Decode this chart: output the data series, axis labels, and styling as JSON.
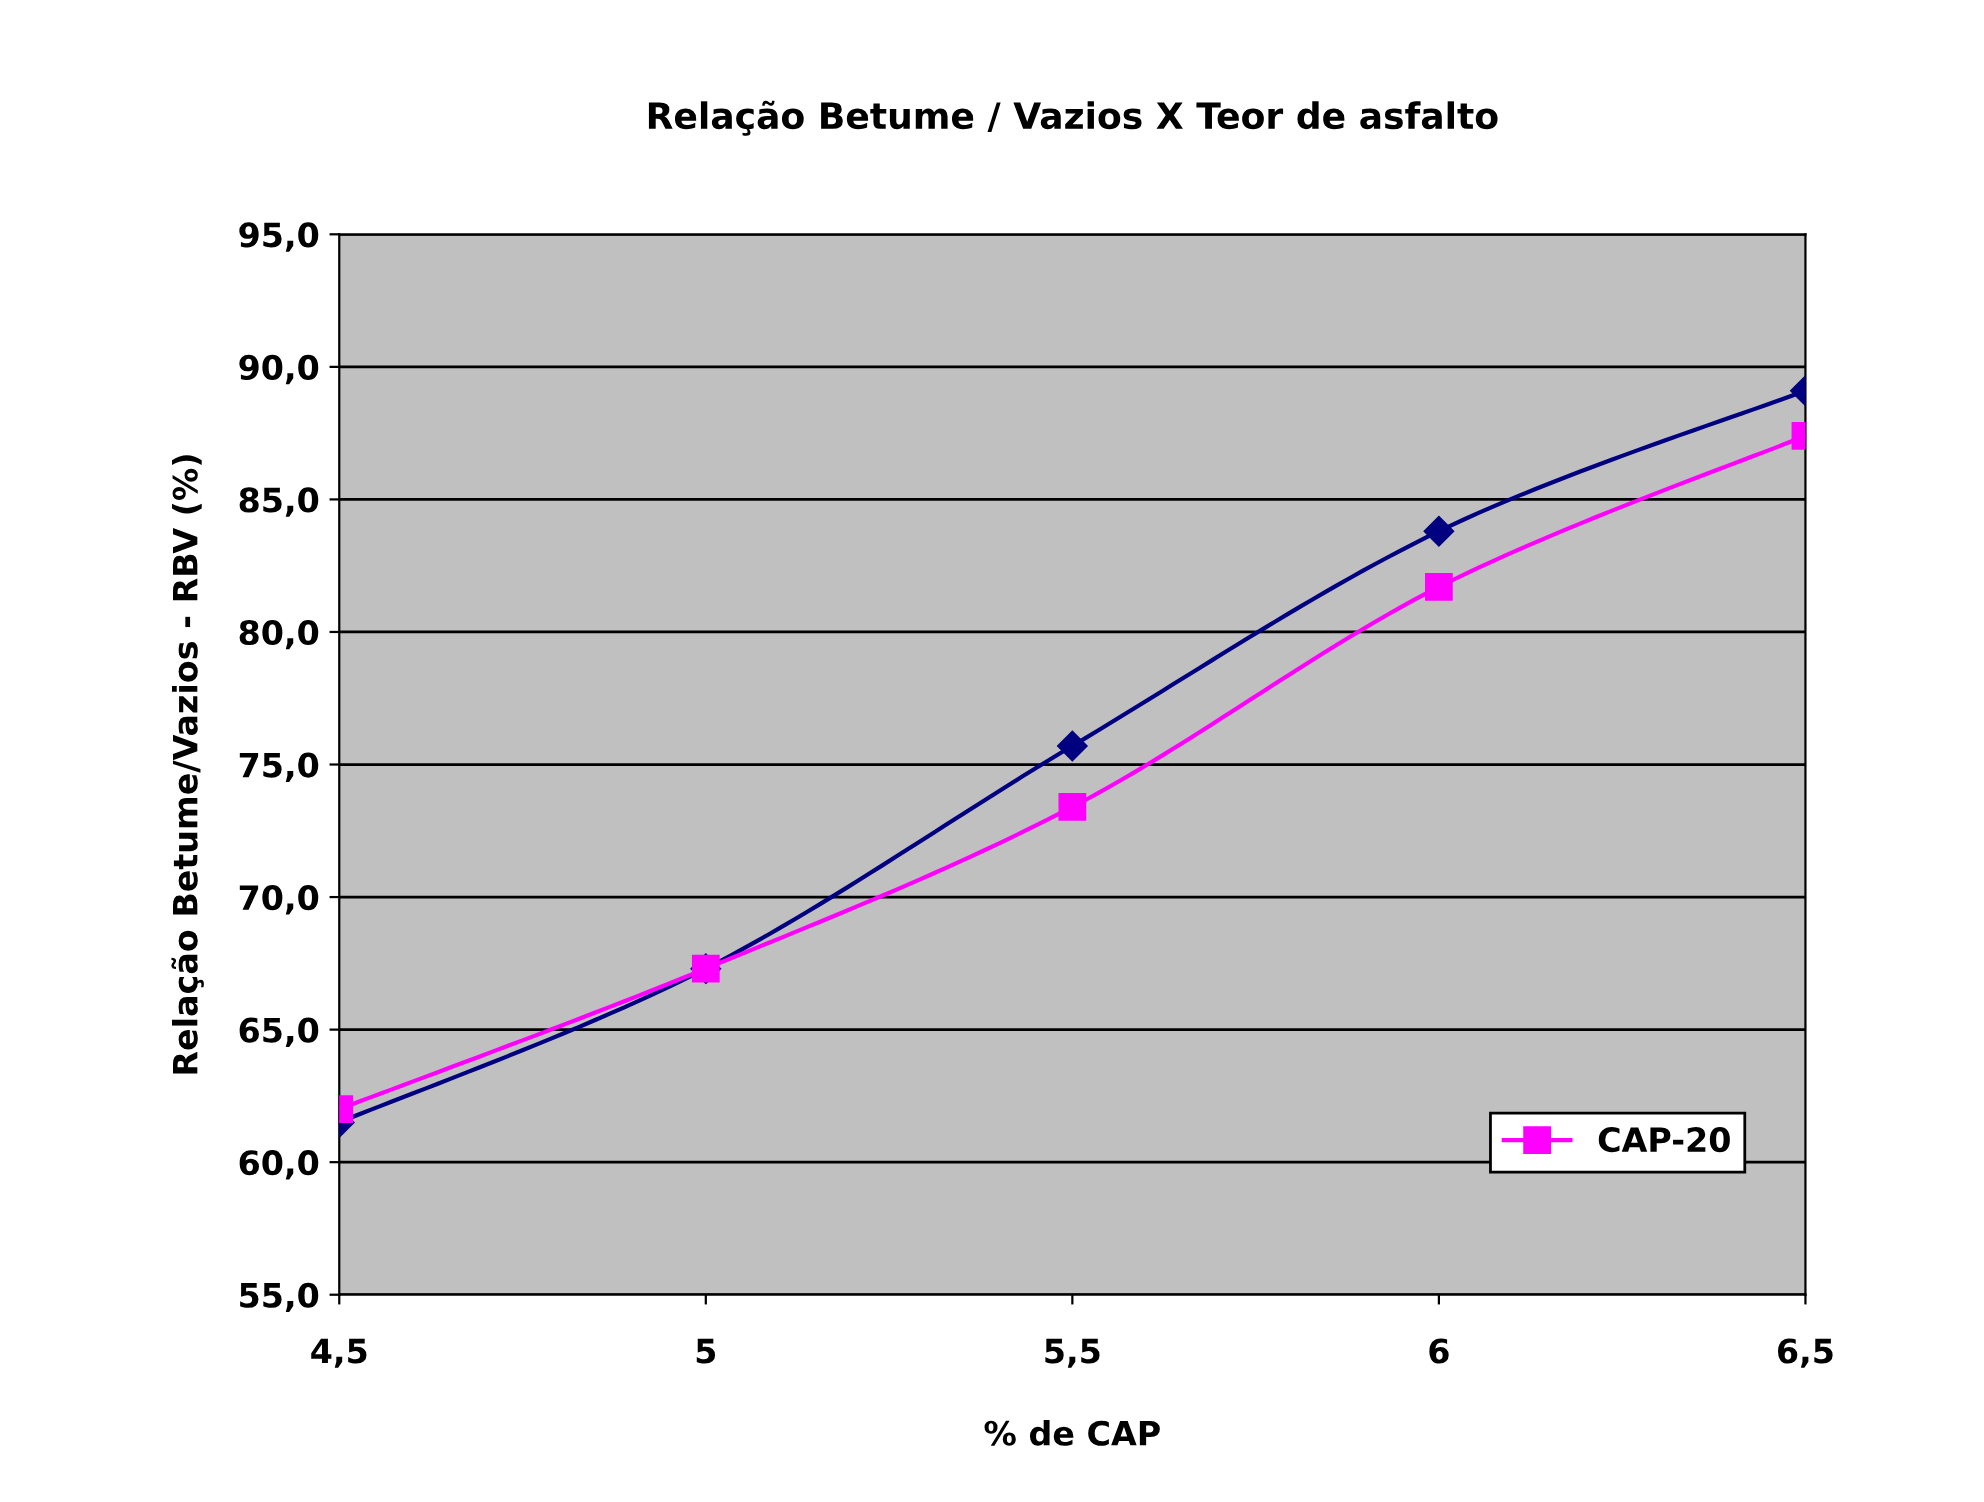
{
  "chart_data": {
    "type": "line",
    "title": "Relação Betume / Vazios X Teor de asfalto",
    "xlabel": "% de CAP",
    "ylabel": "Relação Betume/Vazios - RBV (%)",
    "x": [
      4.5,
      5,
      5.5,
      6,
      6.5
    ],
    "series": [
      {
        "color": "#000080",
        "marker": "diamond",
        "values": [
          61.5,
          67.3,
          75.7,
          83.8,
          89.1
        ]
      },
      {
        "name": "CAP-20",
        "color": "#ff00ff",
        "marker": "square",
        "values": [
          62.0,
          67.3,
          73.4,
          81.7,
          87.4
        ]
      }
    ],
    "xlim": [
      4.5,
      6.5
    ],
    "xticks": [
      {
        "value": 4.5,
        "label": "4,5"
      },
      {
        "value": 5,
        "label": "5"
      },
      {
        "value": 5.5,
        "label": "5,5"
      },
      {
        "value": 6,
        "label": "6"
      },
      {
        "value": 6.5,
        "label": "6,5"
      }
    ],
    "ylim": [
      55,
      95
    ],
    "yticks": [
      {
        "value": 55,
        "label": "55,0"
      },
      {
        "value": 60,
        "label": "60,0"
      },
      {
        "value": 65,
        "label": "65,0"
      },
      {
        "value": 70,
        "label": "70,0"
      },
      {
        "value": 75,
        "label": "75,0"
      },
      {
        "value": 80,
        "label": "80,0"
      },
      {
        "value": 85,
        "label": "85,0"
      },
      {
        "value": 90,
        "label": "90,0"
      },
      {
        "value": 95,
        "label": "95,0"
      }
    ],
    "grid": "y",
    "legend": "bottom right",
    "line_style": "solid"
  }
}
